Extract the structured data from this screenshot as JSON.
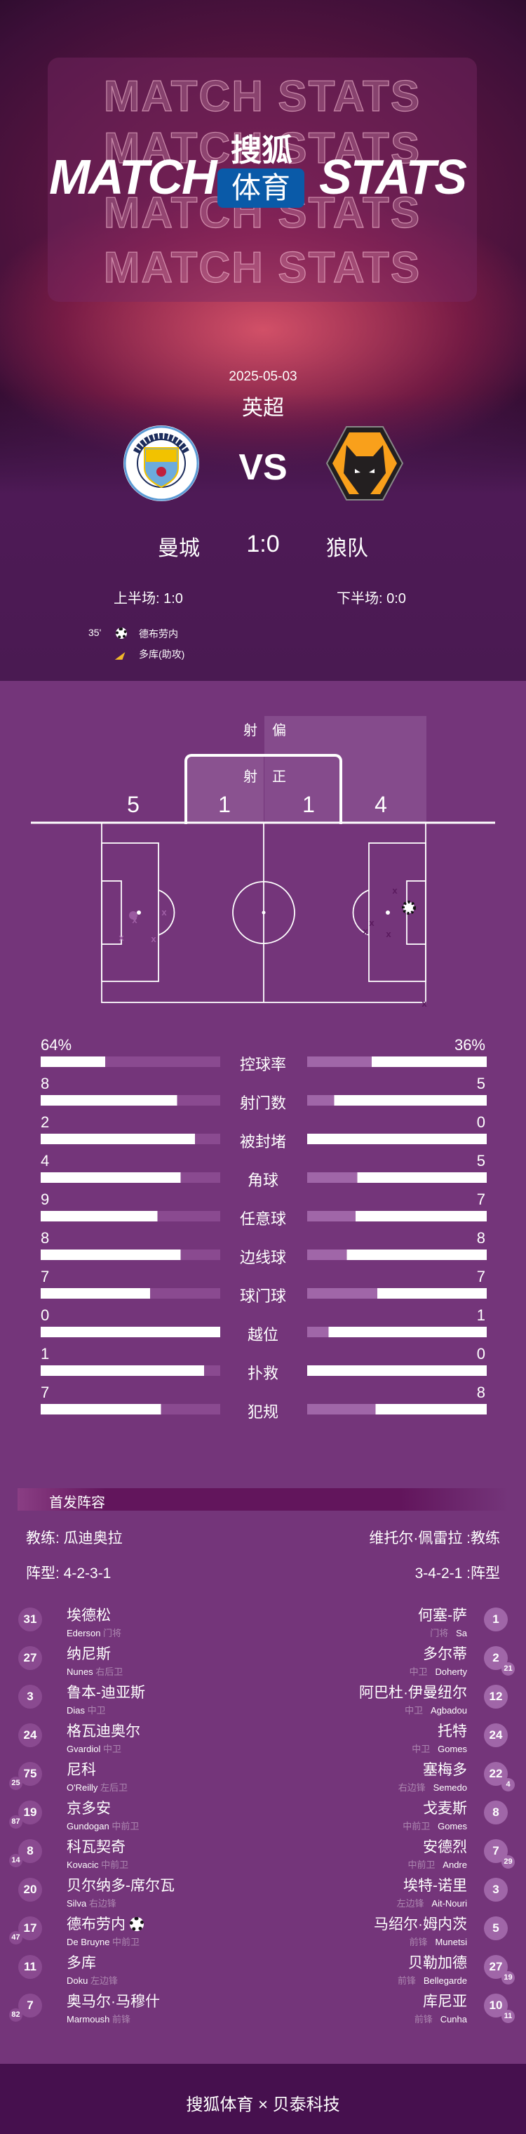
{
  "header": {
    "watermark": "MATCH STATS",
    "title_left": "MATCH",
    "title_right": "STATS",
    "brand_top": "搜狐",
    "brand_bottom": "体育",
    "brand_color": "#0a5aa8"
  },
  "match": {
    "date": "2025-05-03",
    "league": "英超",
    "vs": "VS",
    "home": "曼城",
    "away": "狼队",
    "score": "1:0",
    "first_half": "上半场: 1:0",
    "second_half": "下半场: 0:0",
    "events": [
      {
        "minute": "35'",
        "icon": "soccer-ball-icon",
        "player": "德布劳内"
      },
      {
        "icon": "boot-icon",
        "player": "多库(助攻)"
      }
    ]
  },
  "shots": {
    "off_label": [
      "射",
      "偏"
    ],
    "on_label": [
      "射",
      "正"
    ],
    "home_off": "5",
    "home_on": "1",
    "away_on": "1",
    "away_off": "4"
  },
  "colors": {
    "bg": "#74357a",
    "home_bar": "#8a4a90",
    "away_bar": "#a066a8",
    "header_bg": "#4a1a52"
  },
  "stats": [
    {
      "label": "控球率",
      "home": "64%",
      "away": "36%",
      "home_fill": 0.36,
      "away_fill": 0.64
    },
    {
      "label": "射门数",
      "home": "8",
      "away": "5",
      "home_fill": 0.76,
      "away_fill": 0.85
    },
    {
      "label": "被封堵",
      "home": "2",
      "away": "0",
      "home_fill": 0.86,
      "away_fill": 1.0
    },
    {
      "label": "角球",
      "home": "4",
      "away": "5",
      "home_fill": 0.78,
      "away_fill": 0.72
    },
    {
      "label": "任意球",
      "home": "9",
      "away": "7",
      "home_fill": 0.65,
      "away_fill": 0.73
    },
    {
      "label": "边线球",
      "home": "8",
      "away": "8",
      "home_fill": 0.78,
      "away_fill": 0.78
    },
    {
      "label": "球门球",
      "home": "7",
      "away": "7",
      "home_fill": 0.61,
      "away_fill": 0.61
    },
    {
      "label": "越位",
      "home": "0",
      "away": "1",
      "home_fill": 1.0,
      "away_fill": 0.88
    },
    {
      "label": "扑救",
      "home": "1",
      "away": "0",
      "home_fill": 0.91,
      "away_fill": 1.0
    },
    {
      "label": "犯规",
      "home": "7",
      "away": "8",
      "home_fill": 0.67,
      "away_fill": 0.62
    }
  ],
  "lineup": {
    "title": "首发阵容",
    "home_coach": "教练: 瓜迪奥拉",
    "away_coach": "维托尔·佩雷拉 :教练",
    "home_formation": "阵型: 4-2-3-1",
    "away_formation": "3-4-2-1 :阵型",
    "home": [
      {
        "no": "31",
        "cn": "埃德松",
        "en": "Ederson",
        "pos": "门将"
      },
      {
        "no": "27",
        "cn": "纳尼斯",
        "en": "Nunes",
        "pos": "右后卫"
      },
      {
        "no": "3",
        "cn": "鲁本-迪亚斯",
        "en": "Dias",
        "pos": "中卫"
      },
      {
        "no": "24",
        "cn": "格瓦迪奥尔",
        "en": "Gvardiol",
        "pos": "中卫"
      },
      {
        "no": "75",
        "cn": "尼科",
        "en": "O'Reilly",
        "pos": "左后卫",
        "sub": "25"
      },
      {
        "no": "19",
        "cn": "京多安",
        "en": "Gundogan",
        "pos": "中前卫",
        "sub": "87"
      },
      {
        "no": "8",
        "cn": "科瓦契奇",
        "en": "Kovacic",
        "pos": "中前卫",
        "sub": "14"
      },
      {
        "no": "20",
        "cn": "贝尔纳多-席尔瓦",
        "en": "Silva",
        "pos": "右边锋"
      },
      {
        "no": "17",
        "cn": "德布劳内",
        "en": "De Bruyne",
        "pos": "中前卫",
        "sub": "47",
        "goal": true
      },
      {
        "no": "11",
        "cn": "多库",
        "en": "Doku",
        "pos": "左边锋"
      },
      {
        "no": "7",
        "cn": "奥马尔·马穆什",
        "en": "Marmoush",
        "pos": "前锋",
        "sub": "82"
      }
    ],
    "away": [
      {
        "no": "1",
        "cn": "何塞-萨",
        "en": "Sa",
        "pos": "门将"
      },
      {
        "no": "2",
        "cn": "多尔蒂",
        "en": "Doherty",
        "pos": "中卫",
        "sub": "21"
      },
      {
        "no": "12",
        "cn": "阿巴杜·伊曼纽尔",
        "en": "Agbadou",
        "pos": "中卫"
      },
      {
        "no": "24",
        "cn": "托特",
        "en": "Gomes",
        "pos": "中卫"
      },
      {
        "no": "22",
        "cn": "塞梅多",
        "en": "Semedo",
        "pos": "右边锋",
        "sub": "4"
      },
      {
        "no": "8",
        "cn": "戈麦斯",
        "en": "Gomes",
        "pos": "中前卫"
      },
      {
        "no": "7",
        "cn": "安德烈",
        "en": "Andre",
        "pos": "中前卫",
        "sub": "29"
      },
      {
        "no": "3",
        "cn": "埃特-诺里",
        "en": "Ait-Nouri",
        "pos": "左边锋"
      },
      {
        "no": "5",
        "cn": "马绍尔·姆内茨",
        "en": "Munetsi",
        "pos": "前锋"
      },
      {
        "no": "27",
        "cn": "贝勒加德",
        "en": "Bellegarde",
        "pos": "前锋",
        "sub": "19"
      },
      {
        "no": "10",
        "cn": "库尼亚",
        "en": "Cunha",
        "pos": "前锋",
        "sub": "11"
      }
    ]
  },
  "footer": {
    "text": "搜狐体育 × 贝泰科技"
  }
}
